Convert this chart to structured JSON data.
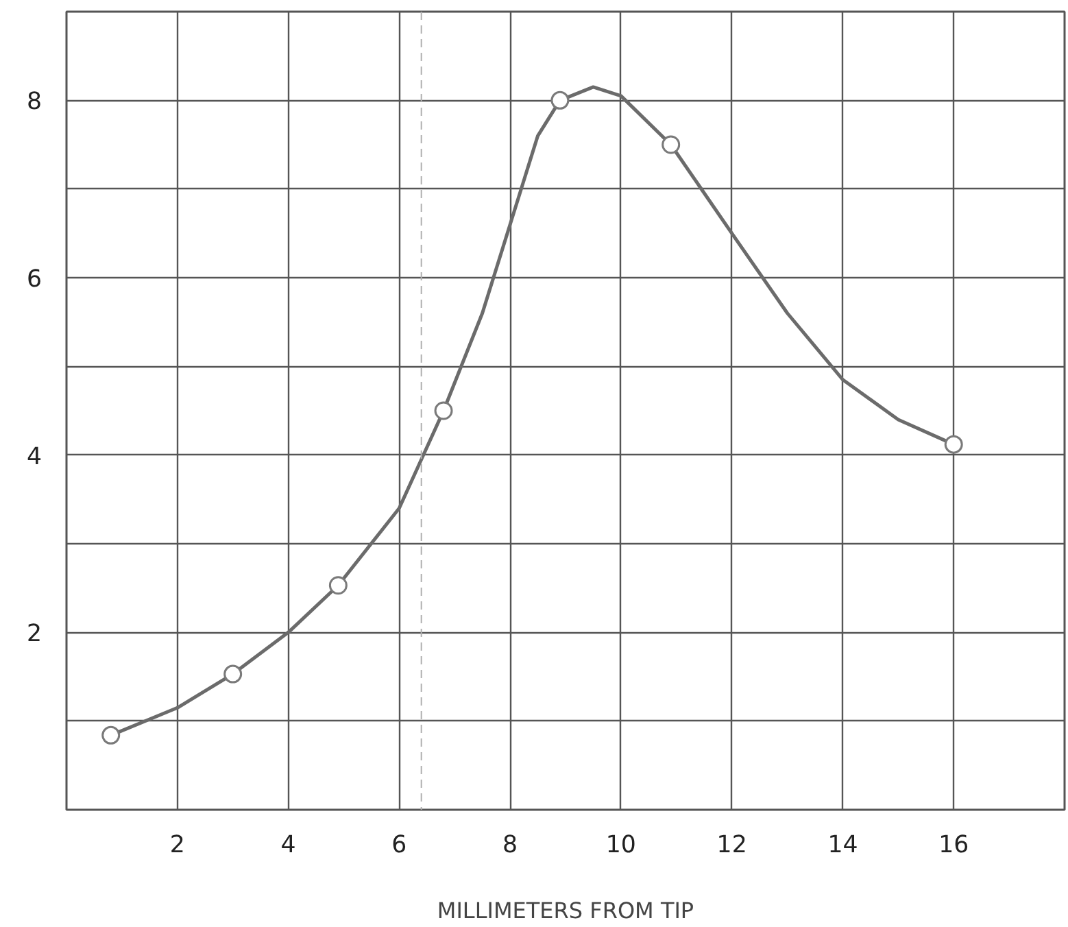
{
  "chart_data": {
    "type": "line",
    "xlabel": "MILLIMETERS FROM TIP",
    "xlim": [
      0,
      18
    ],
    "xticks": [
      2,
      4,
      6,
      8,
      10,
      12,
      14,
      16
    ],
    "ylim": [
      0,
      9
    ],
    "yticks": [
      {
        "value": 1,
        "label": null
      },
      2,
      {
        "value": 3,
        "label": null
      },
      4,
      {
        "value": 5,
        "label": null
      },
      6,
      {
        "value": 7,
        "label": null
      },
      8
    ],
    "grid": true,
    "series": [
      {
        "color": "#6b6b6b",
        "marker": "none",
        "x": [
          0.8,
          2,
          3,
          4,
          4.9,
          6,
          6.8,
          7.5,
          8,
          8.5,
          8.9,
          9.5,
          10,
          10.9,
          12,
          13,
          14,
          15,
          16
        ],
        "values": [
          0.84,
          1.15,
          1.53,
          2.0,
          2.53,
          3.4,
          4.5,
          5.6,
          6.6,
          7.6,
          8.0,
          8.15,
          8.05,
          7.5,
          6.5,
          5.6,
          4.85,
          4.4,
          4.12
        ]
      },
      {
        "type": "scatter",
        "color": "#7a7a7a",
        "marker": "circle",
        "x": [
          0.8,
          3,
          4.9,
          6.8,
          8.9,
          10.9,
          16
        ],
        "values": [
          0.84,
          1.53,
          2.53,
          4.5,
          8.0,
          7.5,
          4.12
        ]
      }
    ],
    "ref_lines": [
      {
        "axis": "x",
        "value": 6.4,
        "color": "#b0b0b0",
        "line_style": "dashed"
      }
    ]
  }
}
